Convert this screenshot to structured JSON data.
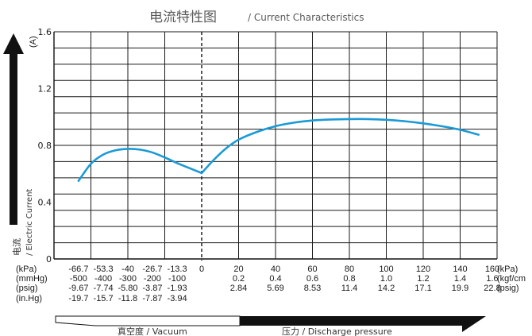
{
  "title": {
    "cn": "电流特性图",
    "en": "/ Current Characteristics"
  },
  "y_axis": {
    "unit": "(A)",
    "label_cn": "电流",
    "label_en": "/ Electric Current"
  },
  "x_units": [
    "(kPa)",
    "(mmHg)",
    "(psig)",
    "(in.Hg)"
  ],
  "x_units_right": [
    "(kPa)",
    "(kgf/cm",
    "(psig)"
  ],
  "vacuum_label": "真空度 / Vacuum",
  "pressure_label": "压力 / Discharge pressure",
  "colors": {
    "curve": "#1a9ad6",
    "grid": "#1a1a1a",
    "arrow": "#111111"
  },
  "vac_cols": [
    {
      "kpa": "-66.7",
      "mmhg": "-500",
      "psig": "-9.67",
      "inhg": "-19.7"
    },
    {
      "kpa": "-53.3",
      "mmhg": "-400",
      "psig": "-7.74",
      "inhg": "-15.7"
    },
    {
      "kpa": "-40",
      "mmhg": "-300",
      "psig": "-5.80",
      "inhg": "-11.8"
    },
    {
      "kpa": "-26.7",
      "mmhg": "-200",
      "psig": "-3.87",
      "inhg": "-7.87"
    },
    {
      "kpa": "-13.3",
      "mmhg": "-100",
      "psig": "-1.93",
      "inhg": "-3.94"
    }
  ],
  "zero_label": "0",
  "pres_cols": [
    {
      "kpa": "20",
      "kgf": "0.2",
      "psig": "2.84"
    },
    {
      "kpa": "40",
      "kgf": "0.4",
      "psig": "5.69"
    },
    {
      "kpa": "60",
      "kgf": "0.6",
      "psig": "8.53"
    },
    {
      "kpa": "80",
      "kgf": "0.8",
      "psig": "11.4"
    },
    {
      "kpa": "100",
      "kgf": "1.0",
      "psig": "14.2"
    },
    {
      "kpa": "120",
      "kgf": "1.2",
      "psig": "17.1"
    },
    {
      "kpa": "140",
      "kgf": "1.4",
      "psig": "19.9"
    },
    {
      "kpa": "160",
      "kgf": "1.6",
      "psig": "22.8"
    }
  ],
  "chart_data": {
    "type": "line",
    "title": "电流特性图 / Current Characteristics",
    "xlabel": "真空度 / Vacuum ← → 压力 / Discharge pressure (kPa)",
    "ylabel": "电流 / Electric Current (A)",
    "ylim": [
      0,
      1.6
    ],
    "xlim": [
      -80,
      160
    ],
    "yticks": [
      "0",
      "0.4",
      "0.8",
      "1.2",
      "1.6"
    ],
    "grid": true,
    "series": [
      {
        "x": [
          -66.7,
          -60,
          -53.3,
          -46.7,
          -40,
          -33.3,
          -26.7,
          -20,
          -13.3,
          -6.7,
          0,
          6.7,
          13.3,
          20,
          30,
          40,
          50,
          60,
          70,
          80,
          90,
          100,
          110,
          120,
          130,
          140,
          150
        ],
        "y": [
          0.55,
          0.67,
          0.735,
          0.765,
          0.775,
          0.77,
          0.75,
          0.715,
          0.675,
          0.64,
          0.605,
          0.7,
          0.78,
          0.84,
          0.895,
          0.935,
          0.96,
          0.975,
          0.982,
          0.985,
          0.985,
          0.98,
          0.97,
          0.955,
          0.935,
          0.91,
          0.875
        ]
      }
    ]
  }
}
